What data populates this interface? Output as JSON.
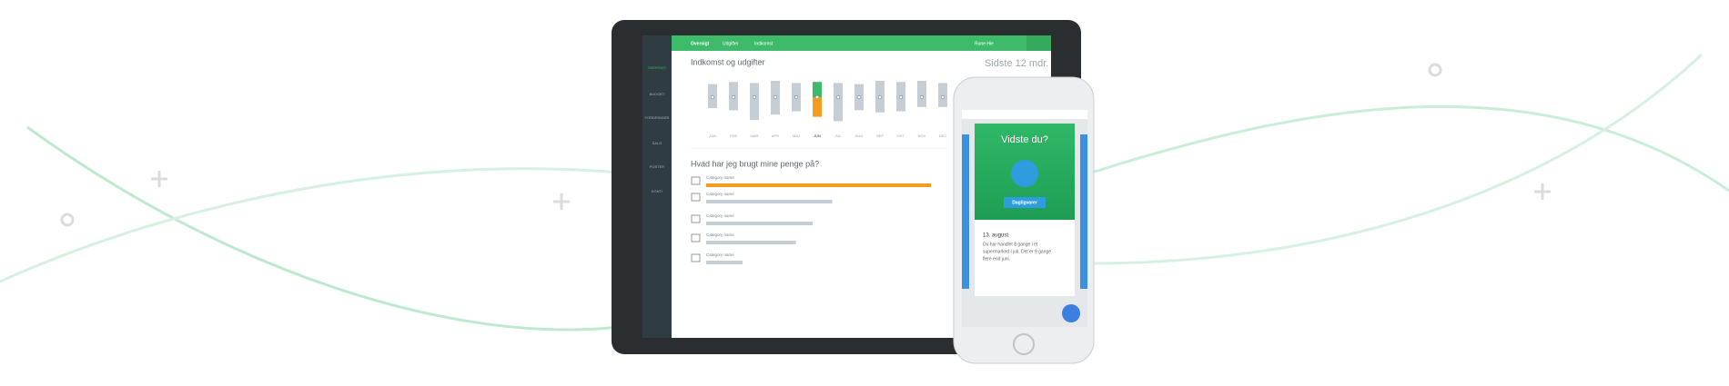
{
  "nav": {
    "tabs": [
      "Oversigt",
      "Udgifter",
      "Indkomst"
    ],
    "user": "Rune Hie"
  },
  "sidebar": {
    "items": [
      "OVERSIGT",
      "BUDGET",
      "FORDRINGER",
      "SALG",
      "POSTER",
      "KONTI"
    ]
  },
  "income_chart": {
    "type": "bar",
    "title": "Indkomst og udgifter",
    "period": "Sidste 12 mdr.",
    "categories": [
      "JAN",
      "FEB",
      "MAR",
      "APR",
      "MAJ",
      "JUN",
      "JUL",
      "AUG",
      "SEP",
      "OKT",
      "NOV",
      "DEC"
    ],
    "series": [
      {
        "name": "Indkomst",
        "color": "#c5ced5",
        "values": [
          12000,
          14000,
          13000,
          15000,
          13000,
          14000,
          13000,
          12000,
          15000,
          14000,
          15000,
          13000
        ]
      },
      {
        "name": "Udgifter",
        "color": "#c5ced5",
        "values": [
          -10000,
          -12000,
          -21000,
          -16000,
          -13000,
          -18000,
          -22000,
          -12000,
          -14000,
          -13000,
          -9000,
          -9000
        ]
      }
    ],
    "highlight_colors": [
      "#3dbb6a",
      "#f39c1f"
    ],
    "highlight_index": 5,
    "ylim": [
      -30000,
      30000
    ]
  },
  "spending_chart": {
    "type": "bar",
    "title": "Hvad har jeg brugt mine penge på?",
    "categories": [
      "Category name",
      "Category name",
      "Category name",
      "Category name",
      "Category name"
    ],
    "values": [
      1140,
      640,
      540,
      455,
      185
    ],
    "colors": [
      "#f39c1f",
      "#c5ced5",
      "#c5ced5",
      "#c5ced5",
      "#c5ced5"
    ],
    "xlim": [
      0,
      1200
    ]
  },
  "phone": {
    "card_title": "Vidste du?",
    "button": "Dagligvarer",
    "date": "13. august",
    "body": [
      "Du har handlet 8 gange i et",
      "supermarked i juli. Det er 9 gange",
      "flere end juni."
    ]
  }
}
